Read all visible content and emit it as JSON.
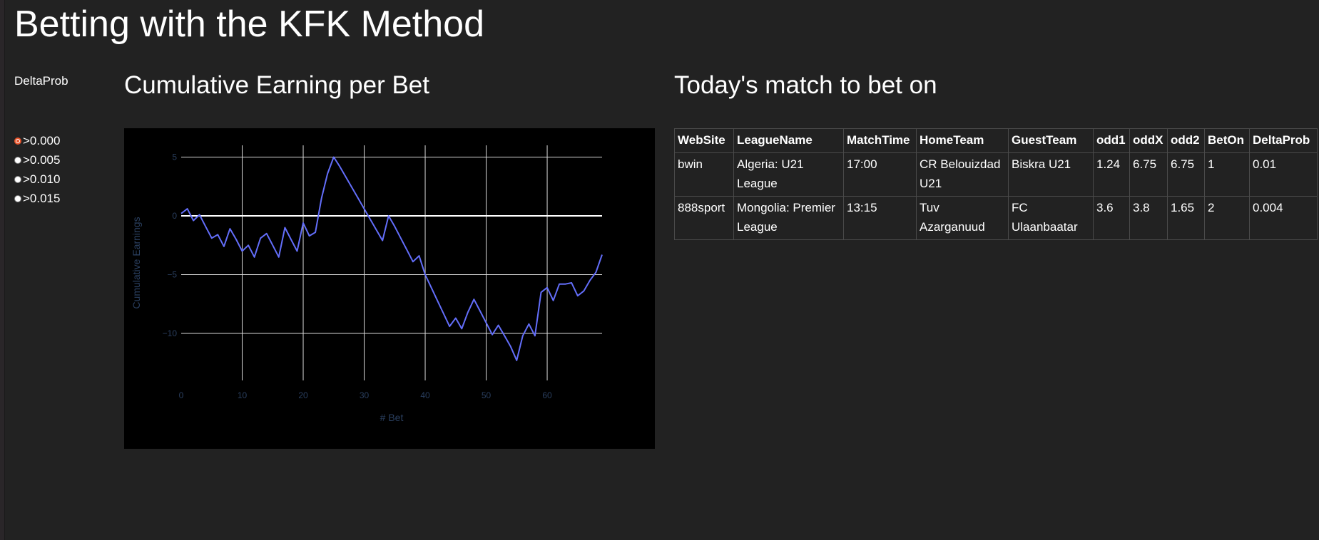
{
  "page": {
    "title": "Betting with the KFK Method"
  },
  "filter": {
    "label": "DeltaProb",
    "options": [
      {
        "label": ">0.000",
        "checked": true
      },
      {
        "label": ">0.005",
        "checked": false
      },
      {
        "label": ">0.010",
        "checked": false
      },
      {
        "label": ">0.015",
        "checked": false
      }
    ]
  },
  "chart_section": {
    "title": "Cumulative Earning per Bet"
  },
  "chart_data": {
    "type": "line",
    "xlabel": "# Bet",
    "ylabel": "Cumulative Earnings",
    "xlim": [
      0,
      69
    ],
    "ylim": [
      -14,
      6
    ],
    "x_ticks": [
      0,
      10,
      20,
      30,
      40,
      50,
      60
    ],
    "y_ticks": [
      5,
      0,
      -5,
      -10
    ],
    "y_tick_labels": [
      "5",
      "0",
      "−5",
      "−10"
    ],
    "grid": true,
    "line_color": "#636efa",
    "background": "#000000",
    "series": [
      {
        "x": [
          0,
          1,
          2,
          3,
          4,
          5,
          6,
          7,
          8,
          9,
          10,
          11,
          12,
          13,
          14,
          15,
          16,
          17,
          18,
          19,
          20,
          21,
          22,
          23,
          24,
          25,
          26,
          27,
          28,
          29,
          30,
          31,
          32,
          33,
          34,
          35,
          36,
          37,
          38,
          39,
          40,
          41,
          42,
          43,
          44,
          45,
          46,
          47,
          48,
          49,
          50,
          51,
          52,
          53,
          54,
          55,
          56,
          57,
          58,
          59,
          60,
          61,
          62,
          63,
          64,
          65,
          66,
          67,
          68,
          69
        ],
        "y": [
          0.2,
          0.6,
          -0.4,
          0.1,
          -0.9,
          -1.9,
          -1.6,
          -2.6,
          -1.1,
          -2.0,
          -3.0,
          -2.5,
          -3.5,
          -1.9,
          -1.5,
          -2.5,
          -3.5,
          -1.0,
          -2.0,
          -3.0,
          -0.6,
          -1.7,
          -1.4,
          1.5,
          3.6,
          5.0,
          4.2,
          3.3,
          2.4,
          1.5,
          0.6,
          -0.3,
          -1.2,
          -2.1,
          0.0,
          -0.9,
          -1.9,
          -2.9,
          -3.9,
          -3.4,
          -5.0,
          -6.1,
          -7.2,
          -8.3,
          -9.4,
          -8.7,
          -9.6,
          -8.2,
          -7.1,
          -8.1,
          -9.1,
          -10.1,
          -9.3,
          -10.2,
          -11.1,
          -12.3,
          -10.2,
          -9.2,
          -10.2,
          -6.5,
          -6.1,
          -7.2,
          -5.8,
          -5.8,
          -5.7,
          -6.8,
          -6.4,
          -5.5,
          -4.8,
          -3.3
        ]
      }
    ]
  },
  "table_section": {
    "title": "Today's match to bet on"
  },
  "table": {
    "columns": [
      "WebSite",
      "LeagueName",
      "MatchTime",
      "HomeTeam",
      "GuestTeam",
      "odd1",
      "oddX",
      "odd2",
      "BetOn",
      "DeltaProb"
    ],
    "rows": [
      [
        "bwin",
        "Algeria: U21 League",
        "17:00",
        "CR Belouizdad U21",
        "Biskra U21",
        "1.24",
        "6.75",
        "6.75",
        "1",
        "0.01"
      ],
      [
        "888sport",
        "Mongolia: Premier League",
        "13:15",
        "Tuv Azarganuud",
        "FC Ulaanbaatar",
        "3.6",
        "3.8",
        "1.65",
        "2",
        "0.004"
      ]
    ]
  }
}
